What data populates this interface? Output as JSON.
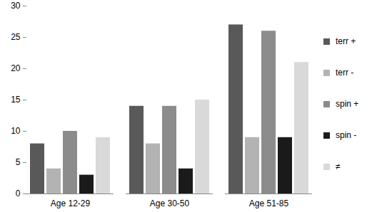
{
  "chart_data": {
    "type": "bar",
    "categories": [
      "Age 12-29",
      "Age 30-50",
      "Age 51-85"
    ],
    "series": [
      {
        "name": "terr +",
        "color": "#595959",
        "values": [
          8,
          14,
          27
        ]
      },
      {
        "name": "terr -",
        "color": "#b3b3b3",
        "values": [
          4,
          8,
          9
        ]
      },
      {
        "name": "spin +",
        "color": "#8c8c8c",
        "values": [
          10,
          14,
          26
        ]
      },
      {
        "name": "spin -",
        "color": "#1a1a1a",
        "values": [
          3,
          4,
          9
        ]
      },
      {
        "name": "≠",
        "color": "#d9d9d9",
        "values": [
          9,
          15,
          21
        ]
      }
    ],
    "ylim": [
      0,
      30
    ],
    "yticks": [
      0,
      5,
      10,
      15,
      20,
      25,
      30
    ],
    "grid": false,
    "legend": "right"
  }
}
